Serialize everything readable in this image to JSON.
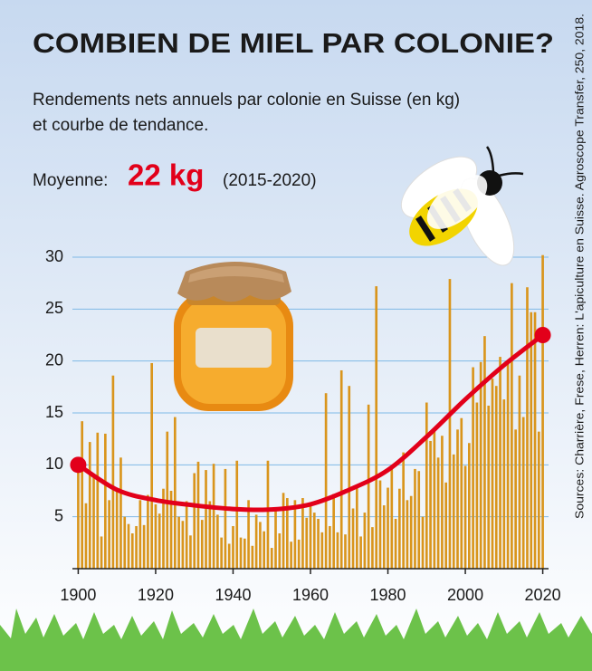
{
  "chart_data": {
    "type": "bar",
    "title": "COMBIEN DE MIEL PAR COLONIE?",
    "subtitle": [
      "Rendements nets annuels par colonie en Suisse (en kg)",
      "et courbe de tendance."
    ],
    "average": {
      "label": "Moyenne:",
      "value": "22 kg",
      "period": "(2015-2020)"
    },
    "source": "Sources: Charrière, Frese, Herren: L'apiculture en Suisse. Agroscope Transfer, 250, 2018.",
    "x": [
      1900,
      1901,
      1902,
      1903,
      1904,
      1905,
      1906,
      1907,
      1908,
      1909,
      1910,
      1911,
      1912,
      1913,
      1914,
      1915,
      1916,
      1917,
      1918,
      1919,
      1920,
      1921,
      1922,
      1923,
      1924,
      1925,
      1926,
      1927,
      1928,
      1929,
      1930,
      1931,
      1932,
      1933,
      1934,
      1935,
      1936,
      1937,
      1938,
      1939,
      1940,
      1941,
      1942,
      1943,
      1944,
      1945,
      1946,
      1947,
      1948,
      1949,
      1950,
      1951,
      1952,
      1953,
      1954,
      1955,
      1956,
      1957,
      1958,
      1959,
      1960,
      1961,
      1962,
      1963,
      1964,
      1965,
      1966,
      1967,
      1968,
      1969,
      1970,
      1971,
      1972,
      1973,
      1974,
      1975,
      1976,
      1977,
      1978,
      1979,
      1980,
      1981,
      1982,
      1983,
      1984,
      1985,
      1986,
      1987,
      1988,
      1989,
      1990,
      1991,
      1992,
      1993,
      1994,
      1995,
      1996,
      1997,
      1998,
      1999,
      2000,
      2001,
      2002,
      2003,
      2004,
      2005,
      2006,
      2007,
      2008,
      2009,
      2010,
      2011,
      2012,
      2013,
      2014,
      2015,
      2016,
      2017,
      2018,
      2019,
      2020
    ],
    "values": [
      10,
      14.2,
      6.3,
      12.2,
      9,
      13.1,
      3.1,
      13,
      6.6,
      18.6,
      7.5,
      10.7,
      5,
      4.3,
      3.4,
      4.1,
      6.6,
      4.2,
      7.1,
      19.8,
      6.2,
      5.3,
      7.7,
      13.2,
      7.5,
      14.6,
      5,
      4.6,
      6.5,
      3.2,
      9.2,
      10.3,
      4.7,
      9.5,
      6.5,
      10.1,
      5.2,
      3,
      9.6,
      2.4,
      4.1,
      10.4,
      3,
      2.9,
      6.6,
      2.2,
      5.2,
      4.5,
      3.6,
      10.4,
      2,
      5.8,
      3.4,
      7.3,
      6.8,
      2.6,
      6.6,
      2.8,
      6.8,
      4.9,
      6.2,
      5.4,
      4.8,
      3.5,
      16.9,
      4.1,
      7.2,
      3.5,
      19.1,
      3.3,
      17.6,
      5.8,
      7.9,
      3.1,
      5.4,
      15.8,
      4,
      27.2,
      8.5,
      6.1,
      7.8,
      9.6,
      4.8,
      7.7,
      11.2,
      6.6,
      7,
      9.6,
      9.4,
      5,
      16,
      12.3,
      13.3,
      10.7,
      12.8,
      8.3,
      27.9,
      11,
      13.4,
      14.5,
      9.9,
      12.1,
      19.4,
      16,
      19.9,
      22.4,
      15.7,
      18.3,
      17.6,
      20.4,
      16.3,
      20.1,
      27.5,
      13.4,
      18.6,
      14.6,
      27.1,
      24.7,
      24.7,
      13.2,
      30.2
    ],
    "color": "#d9951c",
    "trend": {
      "x": [
        1900,
        1910,
        1920,
        1930,
        1940,
        1950,
        1960,
        1970,
        1980,
        1990,
        2000,
        2010,
        2020
      ],
      "values": [
        10,
        7.6,
        6.6,
        6.1,
        5.75,
        5.7,
        6.2,
        7.6,
        9.5,
        12.7,
        16.3,
        19.6,
        22.5
      ],
      "color": "#e2001a"
    },
    "xlim": [
      1898.5,
      2021.5
    ],
    "xticks": [
      1900,
      1920,
      1940,
      1960,
      1980,
      2000,
      2020
    ],
    "ylim": [
      0,
      30
    ],
    "yticks": [
      5,
      10,
      15,
      20,
      25,
      30
    ],
    "grid": true
  }
}
